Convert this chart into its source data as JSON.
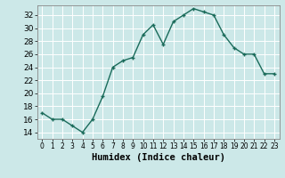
{
  "x": [
    0,
    1,
    2,
    3,
    4,
    5,
    6,
    7,
    8,
    9,
    10,
    11,
    12,
    13,
    14,
    15,
    16,
    17,
    18,
    19,
    20,
    21,
    22,
    23
  ],
  "y": [
    17.0,
    16.0,
    16.0,
    15.0,
    14.0,
    16.0,
    19.5,
    24.0,
    25.0,
    25.5,
    29.0,
    30.5,
    27.5,
    31.0,
    32.0,
    33.0,
    32.5,
    32.0,
    29.0,
    27.0,
    26.0,
    26.0,
    23.0,
    23.0
  ],
  "line_color": "#1a6b5a",
  "marker": "+",
  "marker_size": 3,
  "marker_linewidth": 1.0,
  "line_width": 1.0,
  "bg_color": "#cce8e8",
  "grid_color": "#ffffff",
  "xlabel": "Humidex (Indice chaleur)",
  "xlim": [
    -0.5,
    23.5
  ],
  "ylim": [
    13.0,
    33.5
  ],
  "yticks": [
    14,
    16,
    18,
    20,
    22,
    24,
    26,
    28,
    30,
    32
  ],
  "xtick_labels": [
    "0",
    "1",
    "2",
    "3",
    "4",
    "5",
    "6",
    "7",
    "8",
    "9",
    "10",
    "11",
    "12",
    "13",
    "14",
    "15",
    "16",
    "17",
    "18",
    "19",
    "20",
    "21",
    "22",
    "23"
  ],
  "ytick_fontsize": 6.5,
  "xtick_fontsize": 5.5,
  "xlabel_fontsize": 7.5,
  "xlabel_fontweight": "bold"
}
